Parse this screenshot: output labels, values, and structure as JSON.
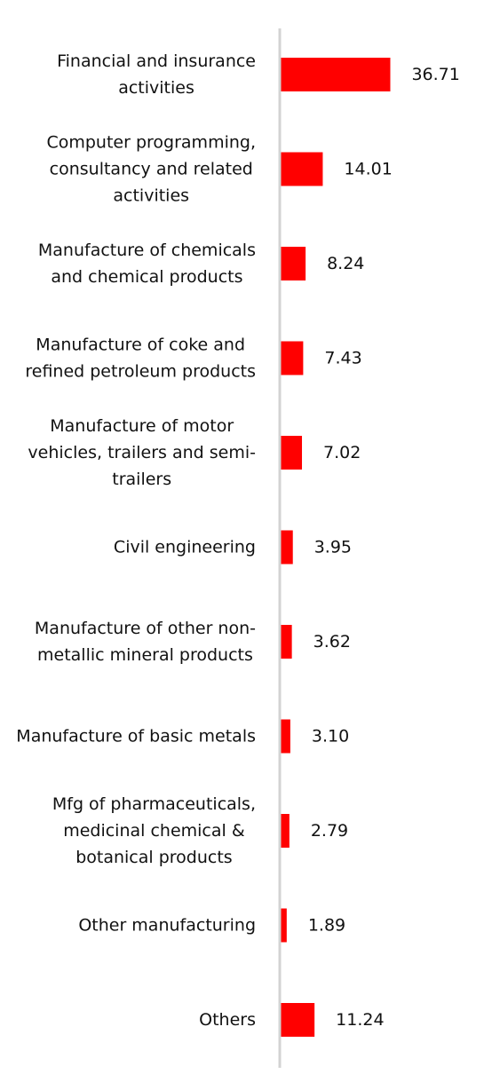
{
  "chart_data": {
    "type": "bar",
    "orientation": "horizontal",
    "categories": [
      [
        "Financial and insurance",
        "activities"
      ],
      [
        "Computer programming,",
        "consultancy and related",
        "activities"
      ],
      [
        "Manufacture of chemicals",
        "and chemical products"
      ],
      [
        "Manufacture of coke and",
        "refined petroleum products"
      ],
      [
        "Manufacture of motor",
        "vehicles, trailers and semi-",
        "trailers"
      ],
      [
        "Civil engineering"
      ],
      [
        "Manufacture of other non-",
        "metallic mineral products"
      ],
      [
        "Manufacture of basic metals"
      ],
      [
        "Mfg of pharmaceuticals,",
        "medicinal chemical &",
        "botanical products"
      ],
      [
        "Other manufacturing"
      ],
      [
        "Others"
      ]
    ],
    "values": [
      36.71,
      14.01,
      8.24,
      7.43,
      7.02,
      3.95,
      3.62,
      3.1,
      2.79,
      1.89,
      11.24
    ],
    "value_labels": [
      "36.71",
      "14.01",
      "8.24",
      "7.43",
      "7.02",
      "3.95",
      "3.62",
      "3.10",
      "2.79",
      "1.89",
      "11.24"
    ],
    "title": "",
    "xlabel": "",
    "ylabel": "",
    "grid": false,
    "legend": "none",
    "colors": {
      "bar": "#ff0000",
      "axis": "#d3d3d3",
      "text": "#111111"
    }
  }
}
